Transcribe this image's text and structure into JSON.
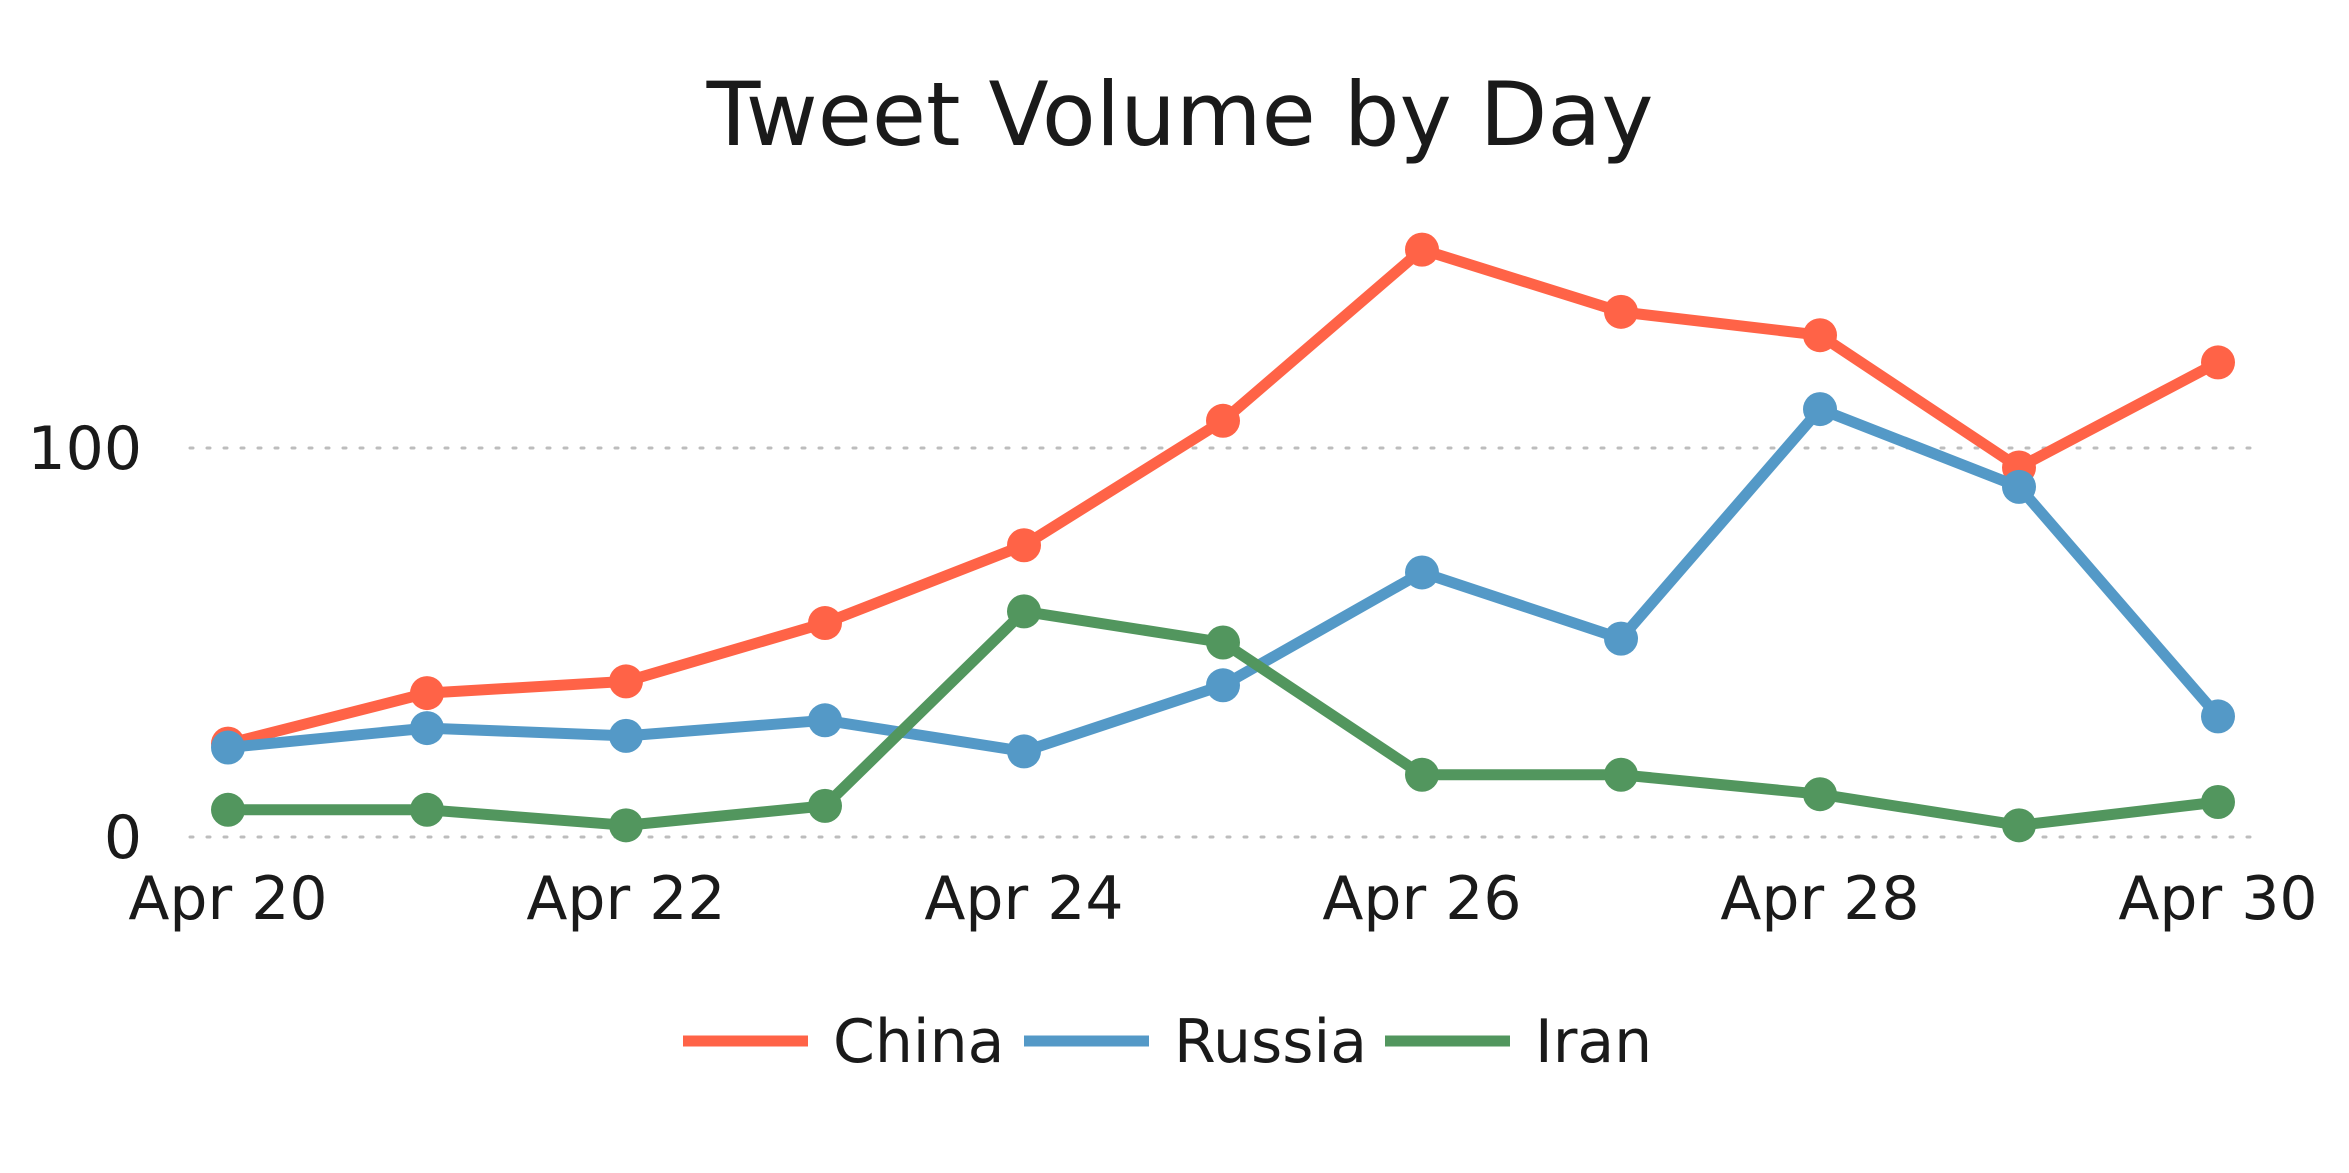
{
  "chart_data": {
    "type": "line",
    "title": "Tweet Volume by Day",
    "xlabel": "",
    "ylabel": "",
    "categories": [
      "Apr 20",
      "Apr 21",
      "Apr 22",
      "Apr 23",
      "Apr 24",
      "Apr 25",
      "Apr 26",
      "Apr 27",
      "Apr 28",
      "Apr 29",
      "Apr 30"
    ],
    "x_tick_labels": [
      "Apr 20",
      "Apr 22",
      "Apr 24",
      "Apr 26",
      "Apr 28",
      "Apr 30"
    ],
    "y_ticks": [
      0,
      100
    ],
    "y_tick_labels": [
      "0",
      "100"
    ],
    "ylim": [
      0,
      158
    ],
    "grid": "horizontal dotted",
    "legend_position": "bottom-center",
    "series": [
      {
        "name": "China",
        "color": "#FF6347",
        "values": [
          24,
          37,
          40,
          55,
          75,
          107,
          151,
          135,
          129,
          95,
          122
        ]
      },
      {
        "name": "Russia",
        "color": "#5499C7",
        "values": [
          23,
          28,
          26,
          30,
          22,
          39,
          68,
          51,
          110,
          90,
          31
        ]
      },
      {
        "name": "Iran",
        "color": "#52965E",
        "values": [
          7,
          7,
          3,
          8,
          58,
          50,
          16,
          16,
          11,
          3,
          9
        ]
      }
    ]
  }
}
